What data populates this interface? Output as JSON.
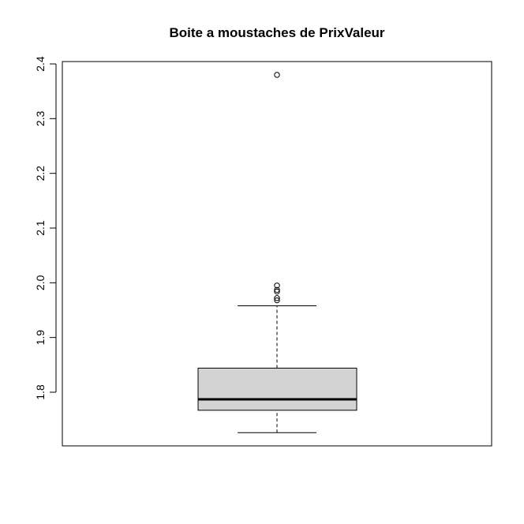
{
  "chart_data": {
    "type": "boxplot",
    "title": "Boite a moustaches de PrixValeur",
    "xlabel": "",
    "ylabel": "",
    "ylim": [
      1.7,
      2.41
    ],
    "yticks": [
      "1.8",
      "1.9",
      "2.0",
      "2.1",
      "2.2",
      "2.3",
      "2.4"
    ],
    "grid": false,
    "box": {
      "whisker_low": 1.726,
      "q1": 1.767,
      "median": 1.787,
      "q3": 1.844,
      "whisker_high": 1.958,
      "fill": "#d3d3d3"
    },
    "outliers": [
      1.968,
      1.972,
      1.984,
      1.987,
      1.995,
      2.38
    ]
  }
}
